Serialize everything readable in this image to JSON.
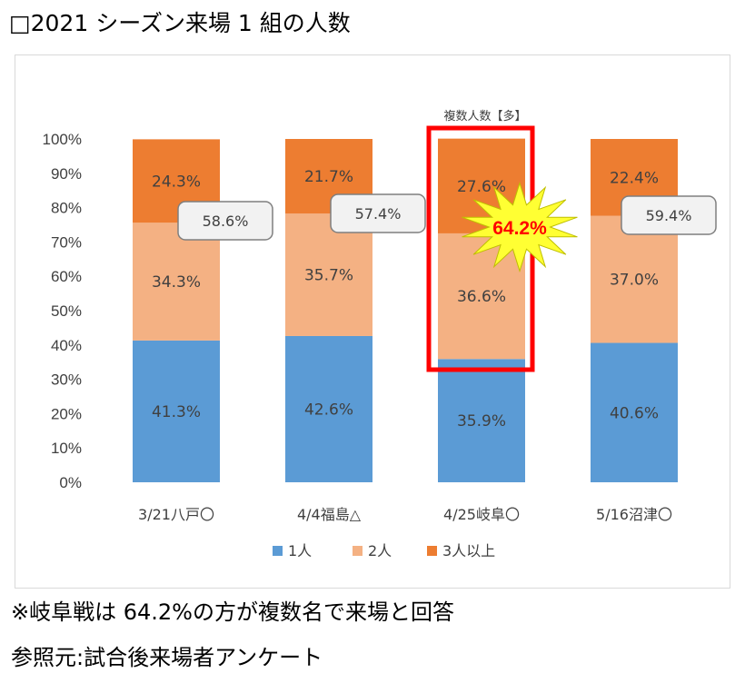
{
  "page": {
    "title": "□2021 シーズン来場 1 組の人数",
    "note1": "※岐阜戦は 64.2%の方が複数名で来場と回答",
    "note2": "参照元:試合後来場者アンケート"
  },
  "chart_data": {
    "type": "bar",
    "stacked": true,
    "title": "",
    "xlabel": "",
    "ylabel": "",
    "ylim": [
      0,
      100
    ],
    "yticks": [
      "0%",
      "10%",
      "20%",
      "30%",
      "40%",
      "50%",
      "60%",
      "70%",
      "80%",
      "90%",
      "100%"
    ],
    "categories": [
      "3/21八戸〇",
      "4/4福島△",
      "4/25岐阜〇",
      "5/16沼津〇"
    ],
    "series": [
      {
        "name": "1人",
        "color": "#5b9bd5",
        "values": [
          41.3,
          42.6,
          35.9,
          40.6
        ],
        "labels": [
          "41.3%",
          "42.6%",
          "35.9%",
          "40.6%"
        ]
      },
      {
        "name": "2人",
        "color": "#f4b183",
        "values": [
          34.3,
          35.7,
          36.6,
          37.0
        ],
        "labels": [
          "34.3%",
          "35.7%",
          "36.6%",
          "37.0%"
        ]
      },
      {
        "name": "3人以上",
        "color": "#ed7d31",
        "values": [
          24.3,
          21.7,
          27.6,
          22.4
        ],
        "labels": [
          "24.3%",
          "21.7%",
          "27.6%",
          "22.4%"
        ]
      }
    ],
    "callouts": [
      "58.6%",
      "57.4%",
      "64.2%",
      "59.4%"
    ],
    "highlight": {
      "category_index": 2,
      "annotation": "複数人数【多】",
      "box_color": "#ff0000",
      "burst_color": "#ffff33"
    },
    "grid": false,
    "legend": "bottom"
  }
}
